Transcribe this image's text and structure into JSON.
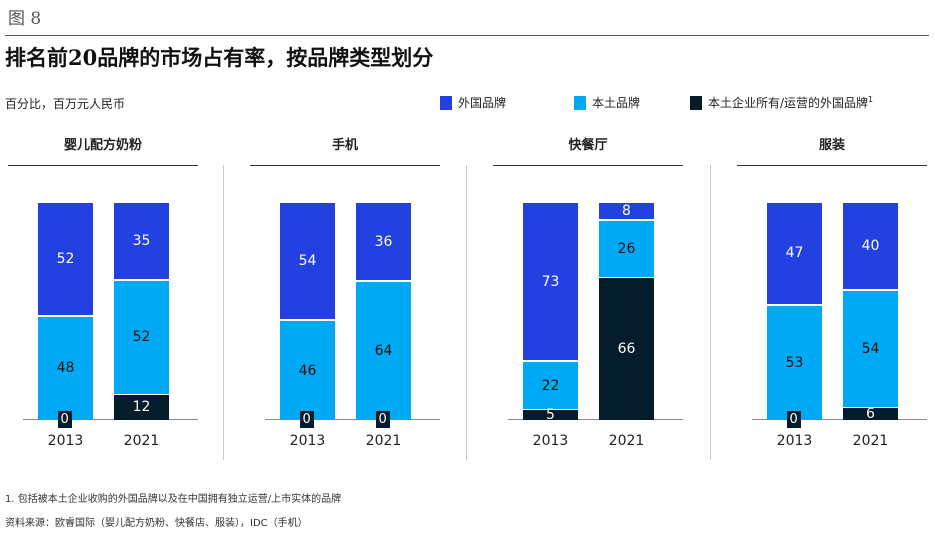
{
  "figure_label": "图 8",
  "title": "排名前20品牌的市场占有率，按品牌类型划分",
  "unit": "百分比，百万元人民币",
  "footnote": "1. 包括被本土企业收购的外国品牌以及在中国拥有独立运营/上市实体的品牌",
  "source": "资料来源：欧睿国际（婴儿配方奶粉、快餐店、服装），IDC（手机）",
  "chart_data": {
    "type": "bar",
    "stacked": true,
    "legend": [
      {
        "name": "外国品牌",
        "color": "#2340e0"
      },
      {
        "name": "本土品牌",
        "color": "#00a9f4"
      },
      {
        "name": "本土企业所有/运营的外国品牌",
        "sup": "1",
        "color": "#051c2c"
      }
    ],
    "panels": [
      {
        "title": "婴儿配方奶粉",
        "categories": [
          "2013",
          "2021"
        ],
        "series": [
          {
            "name": "外国品牌",
            "values": [
              52,
              35
            ]
          },
          {
            "name": "本土品牌",
            "values": [
              48,
              52
            ]
          },
          {
            "name": "本土企业所有/运营的外国品牌",
            "values": [
              0,
              12
            ]
          }
        ]
      },
      {
        "title": "手机",
        "categories": [
          "2013",
          "2021"
        ],
        "series": [
          {
            "name": "外国品牌",
            "values": [
              54,
              36
            ]
          },
          {
            "name": "本土品牌",
            "values": [
              46,
              64
            ]
          },
          {
            "name": "本土企业所有/运营的外国品牌",
            "values": [
              0,
              0
            ]
          }
        ]
      },
      {
        "title": "快餐厅",
        "categories": [
          "2013",
          "2021"
        ],
        "series": [
          {
            "name": "外国品牌",
            "values": [
              73,
              8
            ]
          },
          {
            "name": "本土品牌",
            "values": [
              22,
              26
            ]
          },
          {
            "name": "本土企业所有/运营的外国品牌",
            "values": [
              5,
              66
            ]
          }
        ]
      },
      {
        "title": "服装",
        "categories": [
          "2013",
          "2021"
        ],
        "series": [
          {
            "name": "外国品牌",
            "values": [
              47,
              40
            ]
          },
          {
            "name": "本土品牌",
            "values": [
              53,
              54
            ]
          },
          {
            "name": "本土企业所有/运营的外国品牌",
            "values": [
              0,
              6
            ]
          }
        ]
      }
    ]
  }
}
